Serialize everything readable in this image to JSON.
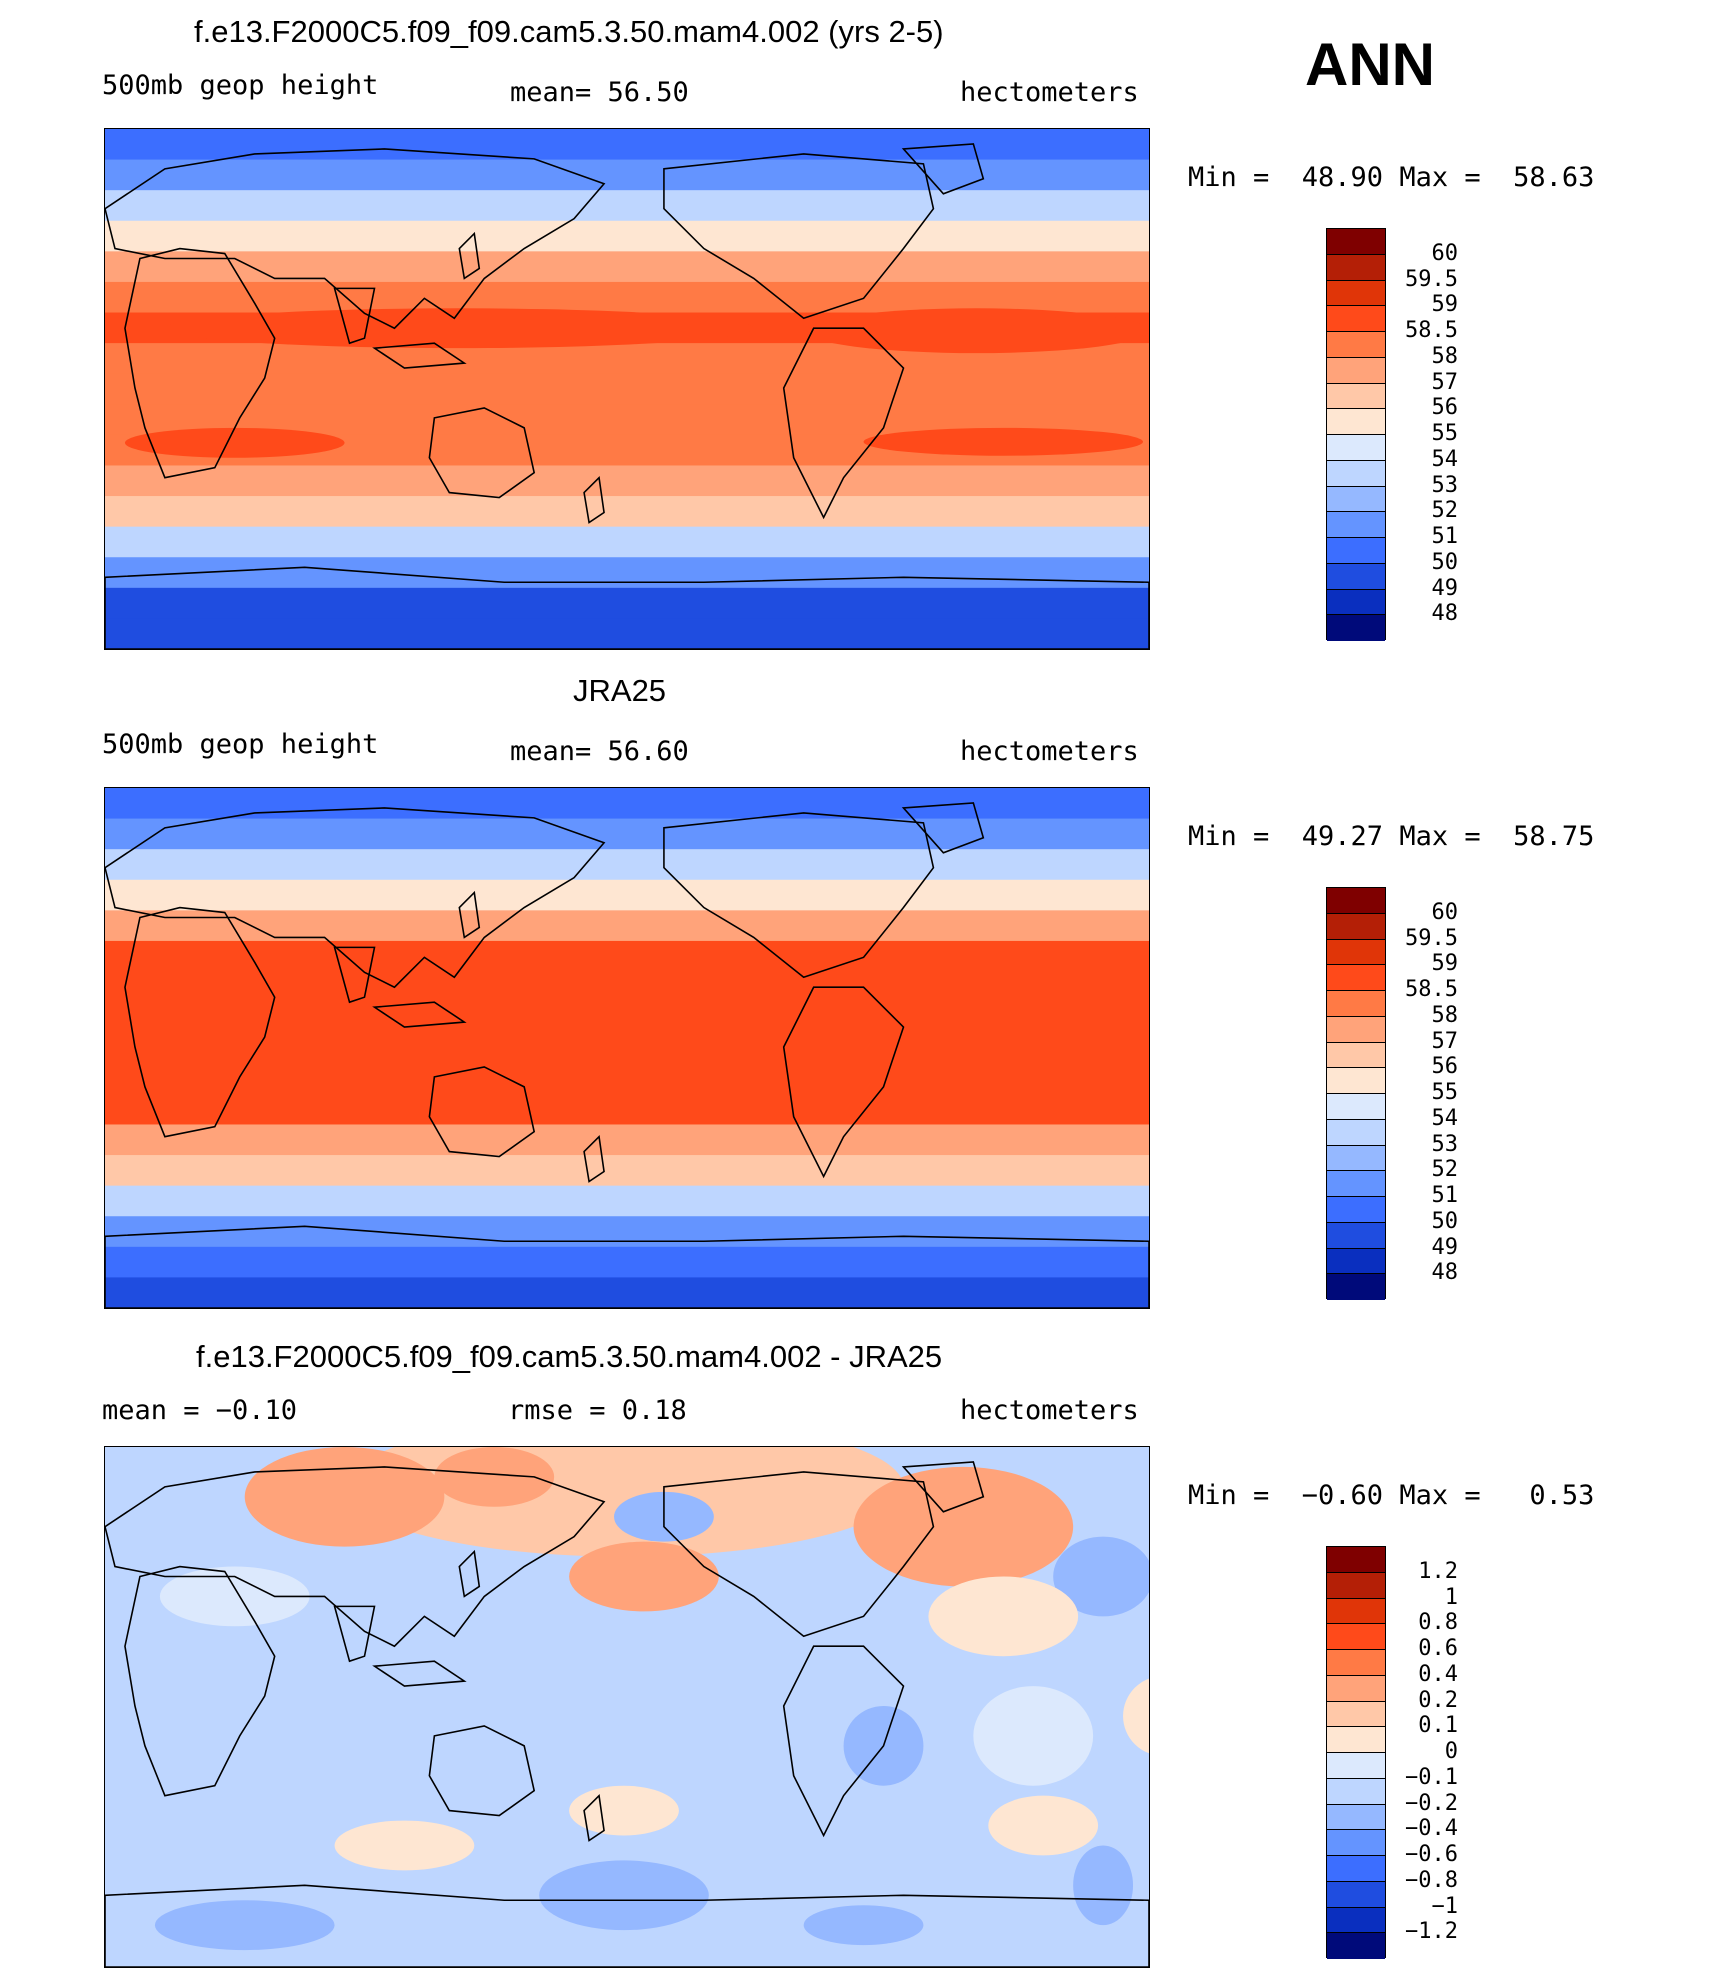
{
  "header": {
    "season": "ANN"
  },
  "panels": [
    {
      "title": "f.e13.F2000C5.f09_f09.cam5.3.50.mam4.002 (yrs 2-5)",
      "left_label": "500mb geop height",
      "center_label": "mean=  56.50",
      "right_label": "hectometers",
      "stats": "Min =  48.90 Max =  58.63"
    },
    {
      "title": "JRA25",
      "left_label": "500mb geop height",
      "center_label": "mean=  56.60",
      "right_label": "hectometers",
      "stats": "Min =  49.27 Max =  58.75"
    },
    {
      "title": "f.e13.F2000C5.f09_f09.cam5.3.50.mam4.002 - JRA25",
      "left_label": "mean =  −0.10",
      "center_label": "rmse =   0.18",
      "right_label": "hectometers",
      "stats": "Min =  −0.60 Max =   0.53"
    }
  ],
  "chart_data": [
    {
      "type": "heatmap",
      "title": "f.e13.F2000C5.f09_f09.cam5.3.50.mam4.002 (yrs 2-5)",
      "variable": "500mb geop height",
      "units": "hectometers",
      "mean": 56.5,
      "min": 48.9,
      "max": 58.63,
      "colorbar_levels": [
        "60",
        "59.5",
        "59",
        "58.5",
        "58",
        "57",
        "56",
        "55",
        "54",
        "53",
        "52",
        "51",
        "50",
        "49",
        "48"
      ],
      "colorbar_colors": [
        "#7f0000",
        "#b41f06",
        "#e03508",
        "#ff4a1a",
        "#ff7a45",
        "#ffa37a",
        "#ffc8a8",
        "#fee6d2",
        "#dce9fd",
        "#bed6ff",
        "#95b8ff",
        "#6494ff",
        "#3c6eff",
        "#1f4de0",
        "#0a2fbf",
        "#000a7a"
      ],
      "latitude_bands_value": [
        50.2,
        51.5,
        53.5,
        55.5,
        57.2,
        58.3,
        58.7,
        58.3,
        58.2,
        58.3,
        58.2,
        57.5,
        56,
        53.5,
        51.5,
        49.5,
        49
      ]
    },
    {
      "type": "heatmap",
      "title": "JRA25",
      "variable": "500mb geop height",
      "units": "hectometers",
      "mean": 56.6,
      "min": 49.27,
      "max": 58.75,
      "colorbar_levels": [
        "60",
        "59.5",
        "59",
        "58.5",
        "58",
        "57",
        "56",
        "55",
        "54",
        "53",
        "52",
        "51",
        "50",
        "49",
        "48"
      ],
      "colorbar_colors": [
        "#7f0000",
        "#b41f06",
        "#e03508",
        "#ff4a1a",
        "#ff7a45",
        "#ffa37a",
        "#ffc8a8",
        "#fee6d2",
        "#dce9fd",
        "#bed6ff",
        "#95b8ff",
        "#6494ff",
        "#3c6eff",
        "#1f4de0",
        "#0a2fbf",
        "#000a7a"
      ],
      "latitude_bands_value": [
        50.5,
        51.8,
        53.8,
        55.6,
        57.4,
        58.6,
        58.7,
        58.7,
        58.7,
        58.7,
        58.6,
        57.6,
        56,
        53.6,
        51.5,
        50.2,
        49.8
      ]
    },
    {
      "type": "heatmap",
      "title": "f.e13.F2000C5.f09_f09.cam5.3.50.mam4.002 - JRA25",
      "units": "hectometers",
      "mean": -0.1,
      "rmse": 0.18,
      "min": -0.6,
      "max": 0.53,
      "colorbar_levels": [
        "1.2",
        "1",
        "0.8",
        "0.6",
        "0.4",
        "0.2",
        "0.1",
        "0",
        "−0.1",
        "−0.2",
        "−0.4",
        "−0.6",
        "−0.8",
        "−1",
        "−1.2"
      ],
      "colorbar_colors": [
        "#7f0000",
        "#b41f06",
        "#e03508",
        "#ff4a1a",
        "#ff7a45",
        "#ffa37a",
        "#ffc8a8",
        "#fee6d2",
        "#dce9fd",
        "#bed6ff",
        "#95b8ff",
        "#6494ff",
        "#3c6eff",
        "#1f4de0",
        "#0a2fbf",
        "#000a7a"
      ]
    }
  ]
}
